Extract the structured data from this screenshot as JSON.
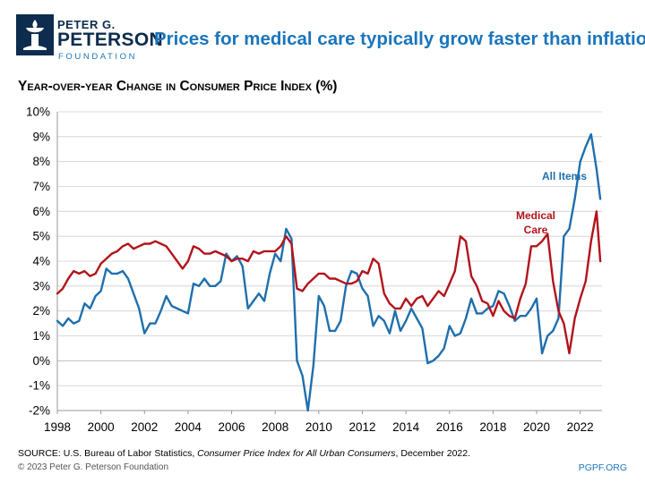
{
  "header": {
    "logo_line1": "PETER G.",
    "logo_line2": "PETERSON",
    "logo_line3": "FOUNDATION",
    "title": "Prices for medical care typically grow faster than inflation",
    "subtitle": "Year-over-year Change in Consumer Price Index (%)"
  },
  "footer": {
    "source_prefix": "SOURCE: U.S. Bureau of Labor Statistics, ",
    "source_italic": "Consumer Price Index for All Urban Consumers",
    "source_suffix": ", December 2022.",
    "copyright": "© 2023 Peter G. Peterson Foundation",
    "website": "PGPF.ORG"
  },
  "colors": {
    "all_items": "#1f6fad",
    "medical_care": "#b3131b",
    "accent": "#1a75bc",
    "grid": "#cfcfcf"
  },
  "chart_data": {
    "type": "line",
    "title": "Prices for medical care typically grow faster than inflation",
    "ylabel": "Year-over-year Change in Consumer Price Index (%)",
    "xlabel": "",
    "xlim": [
      1998,
      2023
    ],
    "ylim": [
      -2,
      10
    ],
    "x_ticks": [
      1998,
      2000,
      2002,
      2004,
      2006,
      2008,
      2010,
      2012,
      2014,
      2016,
      2018,
      2020,
      2022
    ],
    "x_tick_labels": [
      "1998",
      "2000",
      "2002",
      "2004",
      "2006",
      "2008",
      "2010",
      "2012",
      "2014",
      "2016",
      "2018",
      "2020",
      "2022"
    ],
    "y_ticks": [
      -2,
      -1,
      0,
      1,
      2,
      3,
      4,
      5,
      6,
      7,
      8,
      9,
      10
    ],
    "y_tick_labels": [
      "-2%",
      "-1%",
      "0%",
      "1%",
      "2%",
      "3%",
      "4%",
      "5%",
      "6%",
      "7%",
      "8%",
      "9%",
      "10%"
    ],
    "grid": "horizontal",
    "series": [
      {
        "name": "All Items",
        "label": "All Items",
        "color": "#1f6fad",
        "points": [
          [
            1998.0,
            1.6
          ],
          [
            1998.25,
            1.4
          ],
          [
            1998.5,
            1.7
          ],
          [
            1998.75,
            1.5
          ],
          [
            1999.0,
            1.6
          ],
          [
            1999.25,
            2.3
          ],
          [
            1999.5,
            2.1
          ],
          [
            1999.75,
            2.6
          ],
          [
            2000.0,
            2.8
          ],
          [
            2000.25,
            3.7
          ],
          [
            2000.5,
            3.5
          ],
          [
            2000.75,
            3.5
          ],
          [
            2001.0,
            3.6
          ],
          [
            2001.25,
            3.3
          ],
          [
            2001.5,
            2.7
          ],
          [
            2001.75,
            2.1
          ],
          [
            2002.0,
            1.1
          ],
          [
            2002.25,
            1.5
          ],
          [
            2002.5,
            1.5
          ],
          [
            2002.75,
            2.0
          ],
          [
            2003.0,
            2.6
          ],
          [
            2003.25,
            2.2
          ],
          [
            2003.5,
            2.1
          ],
          [
            2003.75,
            2.0
          ],
          [
            2004.0,
            1.9
          ],
          [
            2004.25,
            3.1
          ],
          [
            2004.5,
            3.0
          ],
          [
            2004.75,
            3.3
          ],
          [
            2005.0,
            3.0
          ],
          [
            2005.25,
            3.0
          ],
          [
            2005.5,
            3.2
          ],
          [
            2005.75,
            4.3
          ],
          [
            2006.0,
            4.0
          ],
          [
            2006.25,
            4.2
          ],
          [
            2006.5,
            3.8
          ],
          [
            2006.75,
            2.1
          ],
          [
            2007.0,
            2.4
          ],
          [
            2007.25,
            2.7
          ],
          [
            2007.5,
            2.4
          ],
          [
            2007.75,
            3.5
          ],
          [
            2008.0,
            4.3
          ],
          [
            2008.25,
            4.0
          ],
          [
            2008.5,
            5.3
          ],
          [
            2008.75,
            4.9
          ],
          [
            2009.0,
            0.0
          ],
          [
            2009.25,
            -0.6
          ],
          [
            2009.5,
            -2.0
          ],
          [
            2009.75,
            -0.2
          ],
          [
            2010.0,
            2.6
          ],
          [
            2010.25,
            2.2
          ],
          [
            2010.5,
            1.2
          ],
          [
            2010.75,
            1.2
          ],
          [
            2011.0,
            1.6
          ],
          [
            2011.25,
            3.0
          ],
          [
            2011.5,
            3.6
          ],
          [
            2011.75,
            3.5
          ],
          [
            2012.0,
            2.9
          ],
          [
            2012.25,
            2.6
          ],
          [
            2012.5,
            1.4
          ],
          [
            2012.75,
            1.8
          ],
          [
            2013.0,
            1.6
          ],
          [
            2013.25,
            1.1
          ],
          [
            2013.5,
            2.0
          ],
          [
            2013.75,
            1.2
          ],
          [
            2014.0,
            1.6
          ],
          [
            2014.25,
            2.1
          ],
          [
            2014.5,
            1.7
          ],
          [
            2014.75,
            1.3
          ],
          [
            2015.0,
            -0.1
          ],
          [
            2015.25,
            0.0
          ],
          [
            2015.5,
            0.2
          ],
          [
            2015.75,
            0.5
          ],
          [
            2016.0,
            1.4
          ],
          [
            2016.25,
            1.0
          ],
          [
            2016.5,
            1.1
          ],
          [
            2016.75,
            1.7
          ],
          [
            2017.0,
            2.5
          ],
          [
            2017.25,
            1.9
          ],
          [
            2017.5,
            1.9
          ],
          [
            2017.75,
            2.1
          ],
          [
            2018.0,
            2.2
          ],
          [
            2018.25,
            2.8
          ],
          [
            2018.5,
            2.7
          ],
          [
            2018.75,
            2.2
          ],
          [
            2019.0,
            1.6
          ],
          [
            2019.25,
            1.8
          ],
          [
            2019.5,
            1.8
          ],
          [
            2019.75,
            2.1
          ],
          [
            2020.0,
            2.5
          ],
          [
            2020.25,
            0.3
          ],
          [
            2020.5,
            1.0
          ],
          [
            2020.75,
            1.2
          ],
          [
            2021.0,
            1.7
          ],
          [
            2021.25,
            5.0
          ],
          [
            2021.5,
            5.3
          ],
          [
            2021.75,
            6.5
          ],
          [
            2022.0,
            8.0
          ],
          [
            2022.25,
            8.6
          ],
          [
            2022.5,
            9.1
          ],
          [
            2022.75,
            7.7
          ],
          [
            2022.92,
            6.5
          ]
        ]
      },
      {
        "name": "Medical Care",
        "label": "Medical\nCare",
        "color": "#b3131b",
        "points": [
          [
            1998.0,
            2.7
          ],
          [
            1998.25,
            2.9
          ],
          [
            1998.5,
            3.3
          ],
          [
            1998.75,
            3.6
          ],
          [
            1999.0,
            3.5
          ],
          [
            1999.25,
            3.6
          ],
          [
            1999.5,
            3.4
          ],
          [
            1999.75,
            3.5
          ],
          [
            2000.0,
            3.9
          ],
          [
            2000.25,
            4.1
          ],
          [
            2000.5,
            4.3
          ],
          [
            2000.75,
            4.4
          ],
          [
            2001.0,
            4.6
          ],
          [
            2001.25,
            4.7
          ],
          [
            2001.5,
            4.5
          ],
          [
            2001.75,
            4.6
          ],
          [
            2002.0,
            4.7
          ],
          [
            2002.25,
            4.7
          ],
          [
            2002.5,
            4.8
          ],
          [
            2002.75,
            4.7
          ],
          [
            2003.0,
            4.6
          ],
          [
            2003.25,
            4.3
          ],
          [
            2003.5,
            4.0
          ],
          [
            2003.75,
            3.7
          ],
          [
            2004.0,
            4.0
          ],
          [
            2004.25,
            4.6
          ],
          [
            2004.5,
            4.5
          ],
          [
            2004.75,
            4.3
          ],
          [
            2005.0,
            4.3
          ],
          [
            2005.25,
            4.4
          ],
          [
            2005.5,
            4.3
          ],
          [
            2005.75,
            4.2
          ],
          [
            2006.0,
            4.0
          ],
          [
            2006.25,
            4.1
          ],
          [
            2006.5,
            4.1
          ],
          [
            2006.75,
            4.0
          ],
          [
            2007.0,
            4.4
          ],
          [
            2007.25,
            4.3
          ],
          [
            2007.5,
            4.4
          ],
          [
            2007.75,
            4.4
          ],
          [
            2008.0,
            4.4
          ],
          [
            2008.25,
            4.6
          ],
          [
            2008.5,
            5.0
          ],
          [
            2008.75,
            4.7
          ],
          [
            2009.0,
            2.9
          ],
          [
            2009.25,
            2.8
          ],
          [
            2009.5,
            3.1
          ],
          [
            2009.75,
            3.3
          ],
          [
            2010.0,
            3.5
          ],
          [
            2010.25,
            3.5
          ],
          [
            2010.5,
            3.3
          ],
          [
            2010.75,
            3.3
          ],
          [
            2011.0,
            3.2
          ],
          [
            2011.25,
            3.1
          ],
          [
            2011.5,
            3.1
          ],
          [
            2011.75,
            3.2
          ],
          [
            2012.0,
            3.6
          ],
          [
            2012.25,
            3.5
          ],
          [
            2012.5,
            4.1
          ],
          [
            2012.75,
            3.9
          ],
          [
            2013.0,
            2.7
          ],
          [
            2013.25,
            2.3
          ],
          [
            2013.5,
            2.1
          ],
          [
            2013.75,
            2.1
          ],
          [
            2014.0,
            2.5
          ],
          [
            2014.25,
            2.2
          ],
          [
            2014.5,
            2.5
          ],
          [
            2014.75,
            2.6
          ],
          [
            2015.0,
            2.2
          ],
          [
            2015.25,
            2.5
          ],
          [
            2015.5,
            2.8
          ],
          [
            2015.75,
            2.6
          ],
          [
            2016.0,
            3.1
          ],
          [
            2016.25,
            3.6
          ],
          [
            2016.5,
            5.0
          ],
          [
            2016.75,
            4.8
          ],
          [
            2017.0,
            3.4
          ],
          [
            2017.25,
            3.0
          ],
          [
            2017.5,
            2.4
          ],
          [
            2017.75,
            2.3
          ],
          [
            2018.0,
            1.8
          ],
          [
            2018.25,
            2.4
          ],
          [
            2018.5,
            2.0
          ],
          [
            2018.75,
            1.8
          ],
          [
            2019.0,
            1.7
          ],
          [
            2019.25,
            2.5
          ],
          [
            2019.5,
            3.1
          ],
          [
            2019.75,
            4.6
          ],
          [
            2020.0,
            4.6
          ],
          [
            2020.25,
            4.8
          ],
          [
            2020.5,
            5.1
          ],
          [
            2020.75,
            3.2
          ],
          [
            2021.0,
            2.0
          ],
          [
            2021.25,
            1.5
          ],
          [
            2021.5,
            0.3
          ],
          [
            2021.75,
            1.7
          ],
          [
            2022.0,
            2.5
          ],
          [
            2022.25,
            3.2
          ],
          [
            2022.5,
            4.8
          ],
          [
            2022.75,
            6.0
          ],
          [
            2022.92,
            4.0
          ]
        ]
      }
    ]
  }
}
